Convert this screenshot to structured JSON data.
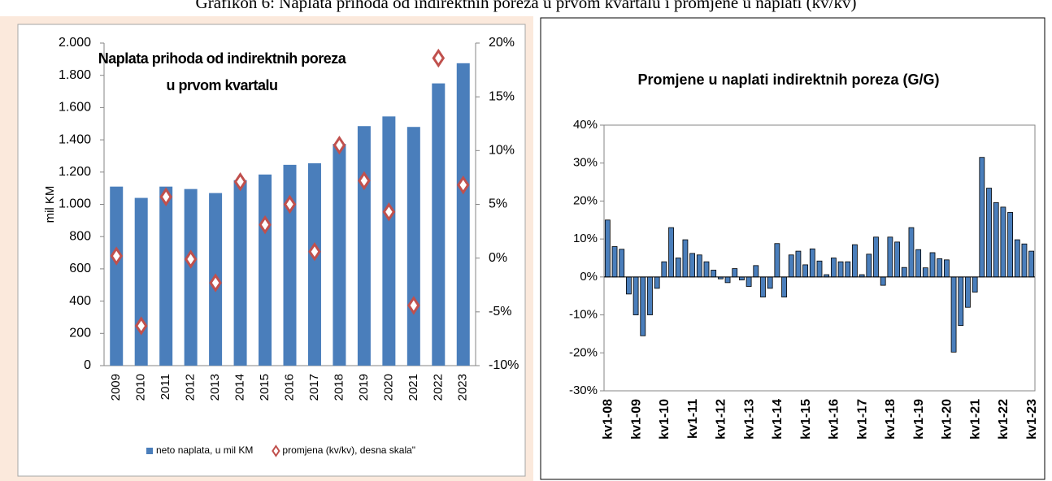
{
  "page_title": "Grafikon 6: Naplata prihoda od indirektnih poreza u prvom kvartalu i promjene u naplati (kv/kv)",
  "chart_data": [
    {
      "type": "bar",
      "title": "Naplata prihoda od indirektnih poreza u prvom kvartalu",
      "y_label": "mil KM",
      "categories": [
        "2009",
        "2010",
        "2011",
        "2012",
        "2013",
        "2014",
        "2015",
        "2016",
        "2017",
        "2018",
        "2019",
        "2020",
        "2021",
        "2022",
        "2023"
      ],
      "series": [
        {
          "name": "neto naplata, u mil KM",
          "type": "bar",
          "color": "#4a7ebb",
          "values": [
            1110,
            1040,
            1110,
            1095,
            1070,
            1150,
            1185,
            1245,
            1255,
            1375,
            1485,
            1545,
            1480,
            1750,
            1875
          ]
        },
        {
          "name": "promjena (kv/kv), desna skala\"",
          "type": "scatter",
          "marker": "diamond",
          "color": "#c0504d",
          "axis": "y2",
          "values": [
            0.2,
            -6.3,
            5.7,
            -0.1,
            -2.3,
            7.1,
            3.1,
            5.0,
            0.6,
            10.5,
            7.2,
            4.3,
            -4.4,
            18.6,
            6.8
          ]
        }
      ],
      "ylim": [
        0,
        2000
      ],
      "yticks": [
        0,
        200,
        400,
        600,
        800,
        {
          "value": 1000,
          "label": "1.000"
        },
        {
          "value": 1200,
          "label": "1.200"
        },
        {
          "value": 1400,
          "label": "1.400"
        },
        {
          "value": 1600,
          "label": "1.600"
        },
        {
          "value": 1800,
          "label": "1.800"
        },
        {
          "value": 2000,
          "label": "2.000"
        }
      ],
      "y2lim": [
        -10,
        20
      ],
      "y2ticks": [
        {
          "value": -10,
          "label": "-10%"
        },
        {
          "value": -5,
          "label": "-5%"
        },
        {
          "value": 0,
          "label": "0%"
        },
        {
          "value": 5,
          "label": "5%"
        },
        {
          "value": 10,
          "label": "10%"
        },
        {
          "value": 15,
          "label": "15%"
        },
        {
          "value": 20,
          "label": "20%"
        }
      ],
      "grid": false,
      "legend": "bottom"
    },
    {
      "type": "bar",
      "title": "Promjene u naplati indirektnih poreza (G/G)",
      "categories": [
        "kv1-08",
        null,
        null,
        null,
        "kv1-09",
        null,
        null,
        null,
        "kv1-10",
        null,
        null,
        null,
        "kv1-11",
        null,
        null,
        null,
        "kv1-12",
        null,
        null,
        null,
        "kv1-13",
        null,
        null,
        null,
        "kv1-14",
        null,
        null,
        null,
        "kv1-15",
        null,
        null,
        null,
        "kv1-16",
        null,
        null,
        null,
        "kv1-17",
        null,
        null,
        null,
        "kv1-18",
        null,
        null,
        null,
        "kv1-19",
        null,
        null,
        null,
        "kv1-20",
        null,
        null,
        null,
        "kv1-21",
        null,
        null,
        null,
        "kv1-22",
        null,
        null,
        null,
        "kv1-23"
      ],
      "values": [
        15,
        8,
        7.3,
        -4.5,
        -10,
        -15.5,
        -10,
        -3,
        4,
        13,
        5,
        9.8,
        6.2,
        5.8,
        4,
        1.8,
        -0.5,
        -1.5,
        2.2,
        -0.8,
        -2.5,
        3,
        -5.3,
        -3,
        8.8,
        -5.3,
        5.8,
        6.8,
        3.2,
        7.4,
        4.2,
        0.6,
        5,
        4,
        4,
        8.5,
        0.6,
        6,
        10.5,
        -2.2,
        10.5,
        9.2,
        2.5,
        13,
        7.2,
        2.4,
        6.4,
        4.8,
        4.5,
        -19.8,
        -12.8,
        -8,
        -4,
        31.5,
        23.4,
        19.6,
        18.4,
        17,
        9.8,
        8.7,
        6.8
      ],
      "color": "#4a7ebb",
      "ylim": [
        -30,
        40
      ],
      "yticks": [
        {
          "value": -30,
          "label": "-30%"
        },
        {
          "value": -20,
          "label": "-20%"
        },
        {
          "value": -10,
          "label": "-10%"
        },
        {
          "value": 0,
          "label": "0%"
        },
        {
          "value": 10,
          "label": "10%"
        },
        {
          "value": 20,
          "label": "20%"
        },
        {
          "value": 30,
          "label": "30%"
        },
        {
          "value": 40,
          "label": "40%"
        }
      ],
      "grid": false
    }
  ]
}
